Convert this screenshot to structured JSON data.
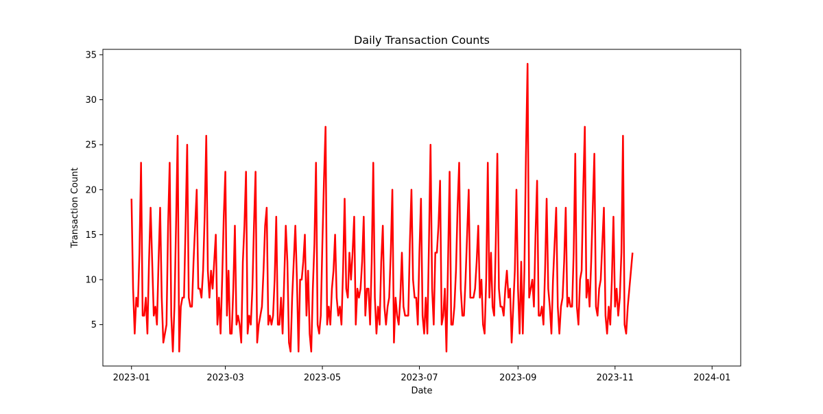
{
  "chart_data": {
    "type": "line",
    "title": "Daily Transaction Counts",
    "xlabel": "Date",
    "ylabel": "Transaction Count",
    "x_start": "2023-01-01",
    "x_end": "2024-01-01",
    "xlim": [
      "2022-12-14",
      "2024-01-19"
    ],
    "ylim": [
      0.4,
      35.6
    ],
    "x_ticks": [
      "2023-01",
      "2023-03",
      "2023-05",
      "2023-07",
      "2023-09",
      "2023-11",
      "2024-01"
    ],
    "y_ticks": [
      5,
      10,
      15,
      20,
      25,
      30,
      35
    ],
    "grid": false,
    "legend": "none",
    "series": [
      {
        "color": "#ff0000",
        "values": [
          19,
          9,
          4,
          8,
          7,
          13,
          23,
          6,
          6,
          8,
          4,
          12,
          18,
          12,
          6,
          7,
          5,
          12,
          18,
          8,
          3,
          4,
          5,
          16,
          23,
          6,
          2,
          7,
          16,
          26,
          2,
          7,
          8,
          8,
          16,
          25,
          8,
          7,
          7,
          12,
          16,
          20,
          9,
          9,
          8,
          11,
          17,
          26,
          11,
          8,
          11,
          9,
          12,
          15,
          5,
          8,
          4,
          10,
          17,
          22,
          6,
          11,
          4,
          4,
          9,
          16,
          5,
          6,
          5,
          3,
          12,
          16,
          22,
          4,
          6,
          5,
          9,
          16,
          22,
          3,
          5,
          6,
          7,
          11,
          16,
          18,
          5,
          6,
          5,
          6,
          10,
          17,
          5,
          5,
          8,
          4,
          10,
          16,
          12,
          3,
          2,
          8,
          12,
          16,
          10,
          2,
          10,
          10,
          12,
          15,
          6,
          11,
          4,
          2,
          9,
          14,
          23,
          5,
          4,
          6,
          14,
          21,
          27,
          5,
          7,
          5,
          9,
          11,
          15,
          8,
          6,
          7,
          5,
          11,
          19,
          9,
          8,
          13,
          10,
          13,
          17,
          5,
          9,
          8,
          9,
          12,
          17,
          6,
          9,
          9,
          5,
          12,
          23,
          8,
          4,
          7,
          5,
          12,
          16,
          7,
          5,
          7,
          8,
          13,
          20,
          3,
          8,
          6,
          5,
          8,
          13,
          7,
          6,
          6,
          6,
          14,
          20,
          10,
          8,
          8,
          5,
          13,
          19,
          6,
          4,
          8,
          4,
          14,
          25,
          9,
          5,
          13,
          13,
          16,
          21,
          5,
          6,
          9,
          2,
          12,
          22,
          5,
          5,
          7,
          11,
          18,
          23,
          9,
          6,
          6,
          10,
          15,
          20,
          8,
          8,
          8,
          9,
          12,
          16,
          8,
          10,
          5,
          4,
          10,
          23,
          8,
          13,
          7,
          6,
          14,
          24,
          9,
          7,
          7,
          6,
          9,
          11,
          8,
          9,
          3,
          7,
          11,
          20,
          9,
          4,
          12,
          4,
          11,
          24,
          34,
          8,
          9,
          10,
          7,
          15,
          21,
          6,
          6,
          7,
          5,
          11,
          19,
          9,
          7,
          4,
          10,
          14,
          18,
          7,
          4,
          7,
          8,
          12,
          18,
          7,
          8,
          7,
          7,
          13,
          24,
          7,
          5,
          10,
          11,
          20,
          27,
          8,
          10,
          7,
          12,
          18,
          24,
          7,
          6,
          9,
          10,
          14,
          18,
          6,
          4,
          7,
          5,
          10,
          17,
          7,
          9,
          6,
          8,
          13,
          26,
          5,
          4,
          7,
          9,
          11,
          13
        ]
      }
    ]
  }
}
